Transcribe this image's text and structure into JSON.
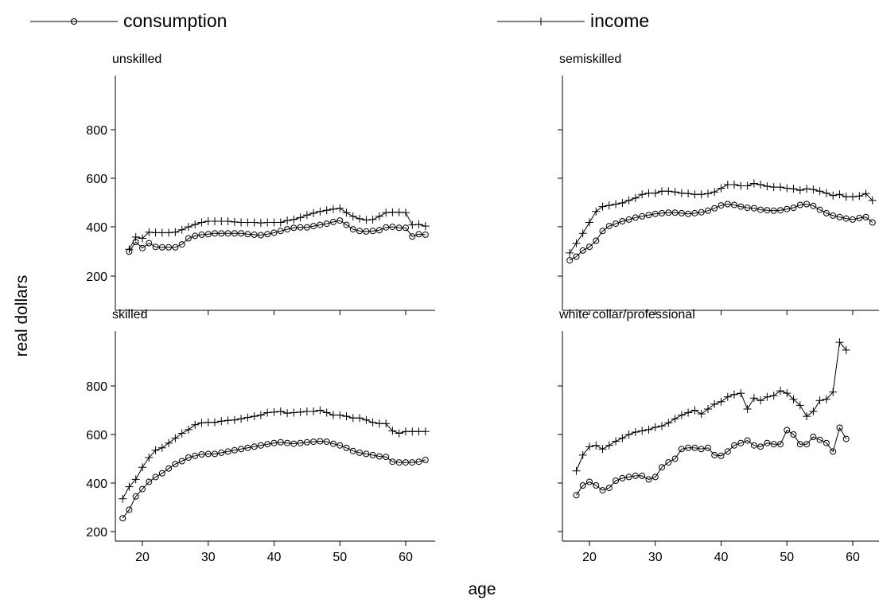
{
  "chart_data": {
    "type": "line",
    "xlabel": "age",
    "ylabel": "real dollars",
    "legend": {
      "placement": "top",
      "entries": [
        {
          "series": "consumption",
          "label": "consumption",
          "marker": "circle"
        },
        {
          "series": "income",
          "label": "income",
          "marker": "plus"
        }
      ]
    },
    "x_ticks": [
      20,
      30,
      40,
      50,
      60
    ],
    "y_ticks": [
      200,
      400,
      600,
      800
    ],
    "xlim": [
      15,
      64
    ],
    "ylim": [
      170,
      990
    ],
    "grid": false,
    "panels": [
      {
        "title": "unskilled",
        "x_tick_labels": false,
        "y_tick_labels": true,
        "series": [
          {
            "name": "consumption",
            "marker": "circle",
            "x": [
              18,
              19,
              20,
              21,
              22,
              23,
              24,
              25,
              26,
              27,
              28,
              29,
              30,
              31,
              32,
              33,
              34,
              35,
              36,
              37,
              38,
              39,
              40,
              41,
              42,
              43,
              44,
              45,
              46,
              47,
              48,
              49,
              50,
              51,
              52,
              53,
              54,
              55,
              56,
              57,
              58,
              59,
              60,
              61,
              62,
              63
            ],
            "y": [
              300,
              340,
              315,
              335,
              320,
              318,
              318,
              318,
              330,
              355,
              365,
              370,
              372,
              375,
              375,
              375,
              375,
              375,
              372,
              370,
              368,
              372,
              378,
              385,
              392,
              398,
              400,
              400,
              405,
              410,
              415,
              422,
              428,
              410,
              392,
              385,
              383,
              385,
              388,
              400,
              402,
              398,
              398,
              362,
              372,
              370
            ]
          },
          {
            "name": "income",
            "marker": "plus",
            "x": [
              18,
              19,
              20,
              21,
              22,
              23,
              24,
              25,
              26,
              27,
              28,
              29,
              30,
              31,
              32,
              33,
              34,
              35,
              36,
              37,
              38,
              39,
              40,
              41,
              42,
              43,
              44,
              45,
              46,
              47,
              48,
              49,
              50,
              51,
              52,
              53,
              54,
              55,
              56,
              57,
              58,
              59,
              60,
              61,
              62,
              63
            ],
            "y": [
              310,
              360,
              355,
              380,
              378,
              378,
              378,
              380,
              390,
              402,
              412,
              420,
              425,
              425,
              425,
              425,
              422,
              420,
              420,
              420,
              418,
              420,
              420,
              420,
              428,
              432,
              440,
              450,
              458,
              465,
              470,
              475,
              478,
              460,
              445,
              435,
              430,
              432,
              445,
              460,
              462,
              462,
              460,
              410,
              412,
              405
            ]
          }
        ]
      },
      {
        "title": "semiskilled",
        "x_tick_labels": false,
        "y_tick_labels": false,
        "series": [
          {
            "name": "consumption",
            "marker": "circle",
            "x": [
              17,
              18,
              19,
              20,
              21,
              22,
              23,
              24,
              25,
              26,
              27,
              28,
              29,
              30,
              31,
              32,
              33,
              34,
              35,
              36,
              37,
              38,
              39,
              40,
              41,
              42,
              43,
              44,
              45,
              46,
              47,
              48,
              49,
              50,
              51,
              52,
              53,
              54,
              55,
              56,
              57,
              58,
              59,
              60,
              61,
              62,
              63
            ],
            "y": [
              265,
              280,
              305,
              320,
              345,
              385,
              405,
              415,
              425,
              432,
              440,
              445,
              450,
              455,
              458,
              460,
              460,
              458,
              455,
              458,
              462,
              468,
              478,
              490,
              495,
              492,
              485,
              480,
              478,
              472,
              470,
              468,
              470,
              475,
              480,
              492,
              495,
              488,
              472,
              458,
              448,
              442,
              436,
              432,
              438,
              442,
              420
            ]
          },
          {
            "name": "income",
            "marker": "plus",
            "x": [
              17,
              18,
              19,
              20,
              21,
              22,
              23,
              24,
              25,
              26,
              27,
              28,
              29,
              30,
              31,
              32,
              33,
              34,
              35,
              36,
              37,
              38,
              39,
              40,
              41,
              42,
              43,
              44,
              45,
              46,
              47,
              48,
              49,
              50,
              51,
              52,
              53,
              54,
              55,
              56,
              57,
              58,
              59,
              60,
              61,
              62,
              63
            ],
            "y": [
              295,
              335,
              375,
              420,
              465,
              485,
              490,
              495,
              500,
              510,
              520,
              535,
              540,
              540,
              548,
              548,
              545,
              540,
              538,
              535,
              535,
              538,
              545,
              560,
              575,
              575,
              570,
              570,
              580,
              575,
              568,
              565,
              565,
              560,
              558,
              552,
              558,
              555,
              548,
              540,
              530,
              535,
              525,
              525,
              528,
              538,
              510
            ]
          }
        ]
      },
      {
        "title": "skilled",
        "x_tick_labels": true,
        "y_tick_labels": true,
        "series": [
          {
            "name": "consumption",
            "marker": "circle",
            "x": [
              17,
              18,
              19,
              20,
              21,
              22,
              23,
              24,
              25,
              26,
              27,
              28,
              29,
              30,
              31,
              32,
              33,
              34,
              35,
              36,
              37,
              38,
              39,
              40,
              41,
              42,
              43,
              44,
              45,
              46,
              47,
              48,
              49,
              50,
              51,
              52,
              53,
              54,
              55,
              56,
              57,
              58,
              59,
              60,
              61,
              62,
              63
            ],
            "y": [
              255,
              290,
              345,
              375,
              405,
              425,
              440,
              460,
              478,
              490,
              505,
              512,
              518,
              520,
              520,
              525,
              530,
              535,
              540,
              545,
              550,
              555,
              560,
              565,
              568,
              565,
              562,
              565,
              568,
              570,
              572,
              570,
              562,
              555,
              545,
              532,
              525,
              520,
              515,
              510,
              508,
              488,
              485,
              485,
              485,
              488,
              495
            ]
          },
          {
            "name": "income",
            "marker": "plus",
            "x": [
              17,
              18,
              19,
              20,
              21,
              22,
              23,
              24,
              25,
              26,
              27,
              28,
              29,
              30,
              31,
              32,
              33,
              34,
              35,
              36,
              37,
              38,
              39,
              40,
              41,
              42,
              43,
              44,
              45,
              46,
              47,
              48,
              49,
              50,
              51,
              52,
              53,
              54,
              55,
              56,
              57,
              58,
              59,
              60,
              61,
              62,
              63
            ],
            "y": [
              335,
              385,
              415,
              465,
              505,
              535,
              545,
              565,
              585,
              605,
              620,
              640,
              648,
              650,
              650,
              655,
              658,
              660,
              665,
              670,
              675,
              680,
              690,
              692,
              695,
              688,
              690,
              692,
              695,
              695,
              700,
              690,
              680,
              680,
              675,
              668,
              668,
              660,
              650,
              645,
              645,
              615,
              605,
              612,
              612,
              612,
              612
            ]
          }
        ]
      },
      {
        "title": "white collar/professional",
        "x_tick_labels": true,
        "y_tick_labels": false,
        "series": [
          {
            "name": "consumption",
            "marker": "circle",
            "x": [
              18,
              19,
              20,
              21,
              22,
              23,
              24,
              25,
              26,
              27,
              28,
              29,
              30,
              31,
              32,
              33,
              34,
              35,
              36,
              37,
              38,
              39,
              40,
              41,
              42,
              43,
              44,
              45,
              46,
              47,
              48,
              49,
              50,
              51,
              52,
              53,
              54,
              55,
              56,
              57,
              58,
              59
            ],
            "y": [
              350,
              390,
              405,
              390,
              370,
              380,
              410,
              420,
              425,
              430,
              430,
              415,
              425,
              465,
              485,
              500,
              540,
              545,
              545,
              540,
              545,
              515,
              512,
              530,
              555,
              565,
              575,
              555,
              550,
              565,
              560,
              560,
              618,
              600,
              560,
              560,
              590,
              578,
              565,
              530,
              628,
              582
            ]
          },
          {
            "name": "income",
            "marker": "plus",
            "x": [
              18,
              19,
              20,
              21,
              22,
              23,
              24,
              25,
              26,
              27,
              28,
              29,
              30,
              31,
              32,
              33,
              34,
              35,
              36,
              37,
              38,
              39,
              40,
              41,
              42,
              43,
              44,
              45,
              46,
              47,
              48,
              49,
              50,
              51,
              52,
              53,
              54,
              55,
              56,
              57,
              58,
              59
            ],
            "y": [
              450,
              515,
              550,
              555,
              540,
              555,
              572,
              585,
              600,
              610,
              615,
              620,
              630,
              635,
              648,
              665,
              680,
              690,
              700,
              685,
              705,
              725,
              735,
              755,
              765,
              770,
              705,
              750,
              740,
              755,
              760,
              780,
              770,
              745,
              720,
              675,
              695,
              740,
              745,
              775,
              980,
              948
            ]
          }
        ]
      }
    ]
  }
}
